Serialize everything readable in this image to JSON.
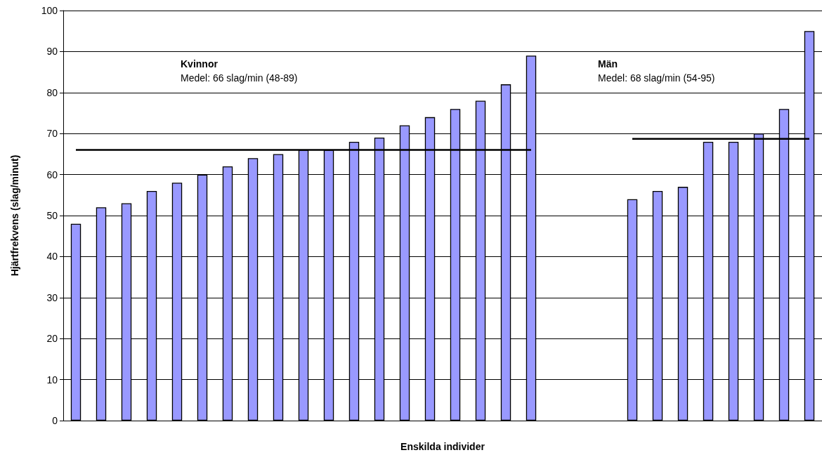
{
  "chart_data": {
    "type": "bar",
    "xlabel": "Enskilda individer",
    "ylabel": "Hjärtfrekvens (slag/minut)",
    "categories": [
      null,
      null,
      null,
      null,
      null,
      null,
      null,
      null,
      null,
      null,
      null,
      null,
      null,
      null,
      null,
      null,
      null,
      null,
      null,
      null,
      null,
      null,
      null,
      null,
      null,
      null,
      null,
      null,
      null,
      null
    ],
    "series": [
      {
        "color": "#9999ff",
        "values": [
          48,
          52,
          53,
          56,
          58,
          60,
          62,
          64,
          65,
          66,
          66,
          68,
          69,
          72,
          74,
          76,
          78,
          82,
          89,
          null,
          null,
          null,
          54,
          56,
          57,
          68,
          68,
          70,
          76,
          95
        ]
      },
      {
        "type": "line",
        "color": "#000000",
        "values": [
          66,
          66,
          66,
          66,
          66,
          66,
          66,
          66,
          66,
          66,
          66,
          66,
          66,
          66,
          66,
          66,
          66,
          66,
          66,
          null,
          null,
          null,
          null,
          null,
          null,
          null,
          null,
          null,
          null,
          null
        ]
      },
      {
        "type": "line",
        "color": "#000000",
        "values": [
          null,
          null,
          null,
          null,
          null,
          null,
          null,
          null,
          null,
          null,
          null,
          null,
          null,
          null,
          null,
          null,
          null,
          null,
          null,
          null,
          null,
          null,
          68.7,
          68.7,
          68.7,
          68.7,
          68.7,
          68.7,
          68.7,
          68.7
        ]
      }
    ],
    "annotations": [
      "Kvinnor",
      "Medel: 66 slag/min (48-89)",
      "Män",
      "Medel: 68 slag/min (54-95)"
    ],
    "ylim": [
      0,
      100
    ],
    "yticks": [
      0,
      10,
      20,
      30,
      40,
      50,
      60,
      70,
      80,
      90,
      100
    ],
    "grid": "y"
  }
}
